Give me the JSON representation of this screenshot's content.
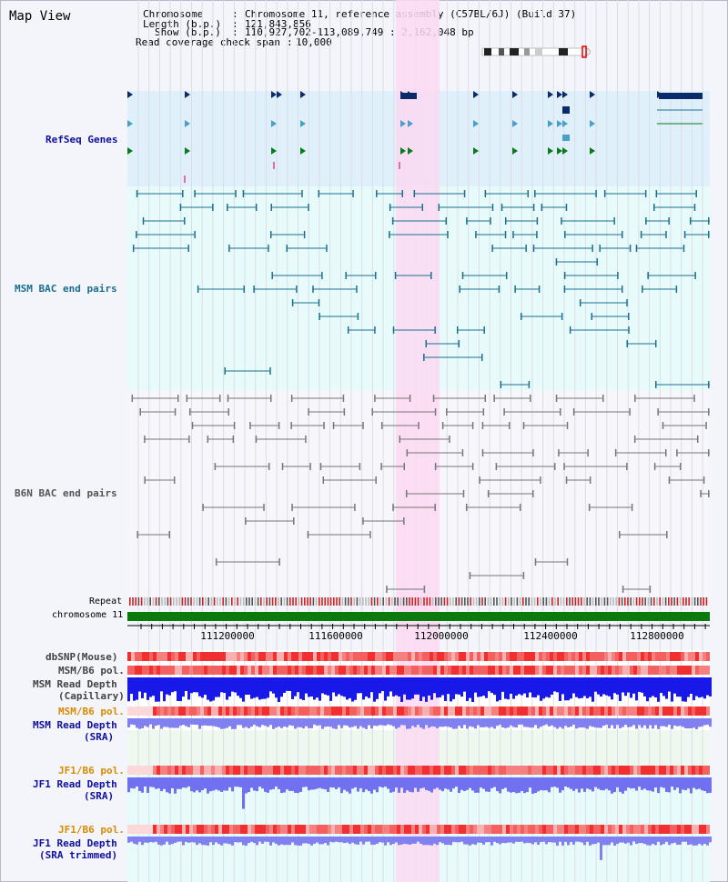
{
  "title": "Map View",
  "info": {
    "chromosome_label": "Chromosome",
    "chromosome_value": "Chromosome 11, reference assembly (C57BL/6J) (Build 37)",
    "length_label": "Length (b.p.)",
    "length_value": "121,843,856",
    "show_label": "Show (b.p.)",
    "show_value": "110,927,702-113,089,749 : 2,162,048 bp",
    "coverage_label": "Read coverage check span",
    "coverage_value": "10,000"
  },
  "tracks": {
    "refseq": "RefSeq Genes",
    "msm_bac": "MSM BAC end pairs",
    "b6n_bac": "B6N BAC end pairs",
    "repeat": "Repeat",
    "chromosome": "chromosome 11",
    "dbsnp": "dbSNP(Mouse)",
    "msm_b6_pol_1": "MSM/B6 pol.",
    "msm_read_depth_cap_1": "MSM Read Depth",
    "msm_read_depth_cap_2": "(Capillary)",
    "msm_b6_pol_2": "MSM/B6 pol.",
    "msm_read_depth_sra_1": "MSM Read Depth",
    "msm_read_depth_sra_2": "(SRA)",
    "jf1_b6_pol_1": "JF1/B6 pol.",
    "jf1_read_depth_sra_1": "JF1 Read Depth",
    "jf1_read_depth_sra_2": "(SRA)",
    "jf1_b6_pol_2": "JF1/B6 pol.",
    "jf1_read_depth_trim_1": "JF1 Read Depth",
    "jf1_read_depth_trim_2": "(SRA trimmed)"
  },
  "axis_ticks": [
    "111200000",
    "111600000",
    "112000000",
    "112400000",
    "112800000"
  ],
  "colors": {
    "refseq_bg": "#dff0fb",
    "bac_bg": "#e8fbfb",
    "highlight": "#fbd9f2",
    "chrom_bar": "#0a7a0a",
    "snp_red": "#f04040",
    "depth_blue": "#1818e8",
    "depth_light": "#8080f0"
  }
}
